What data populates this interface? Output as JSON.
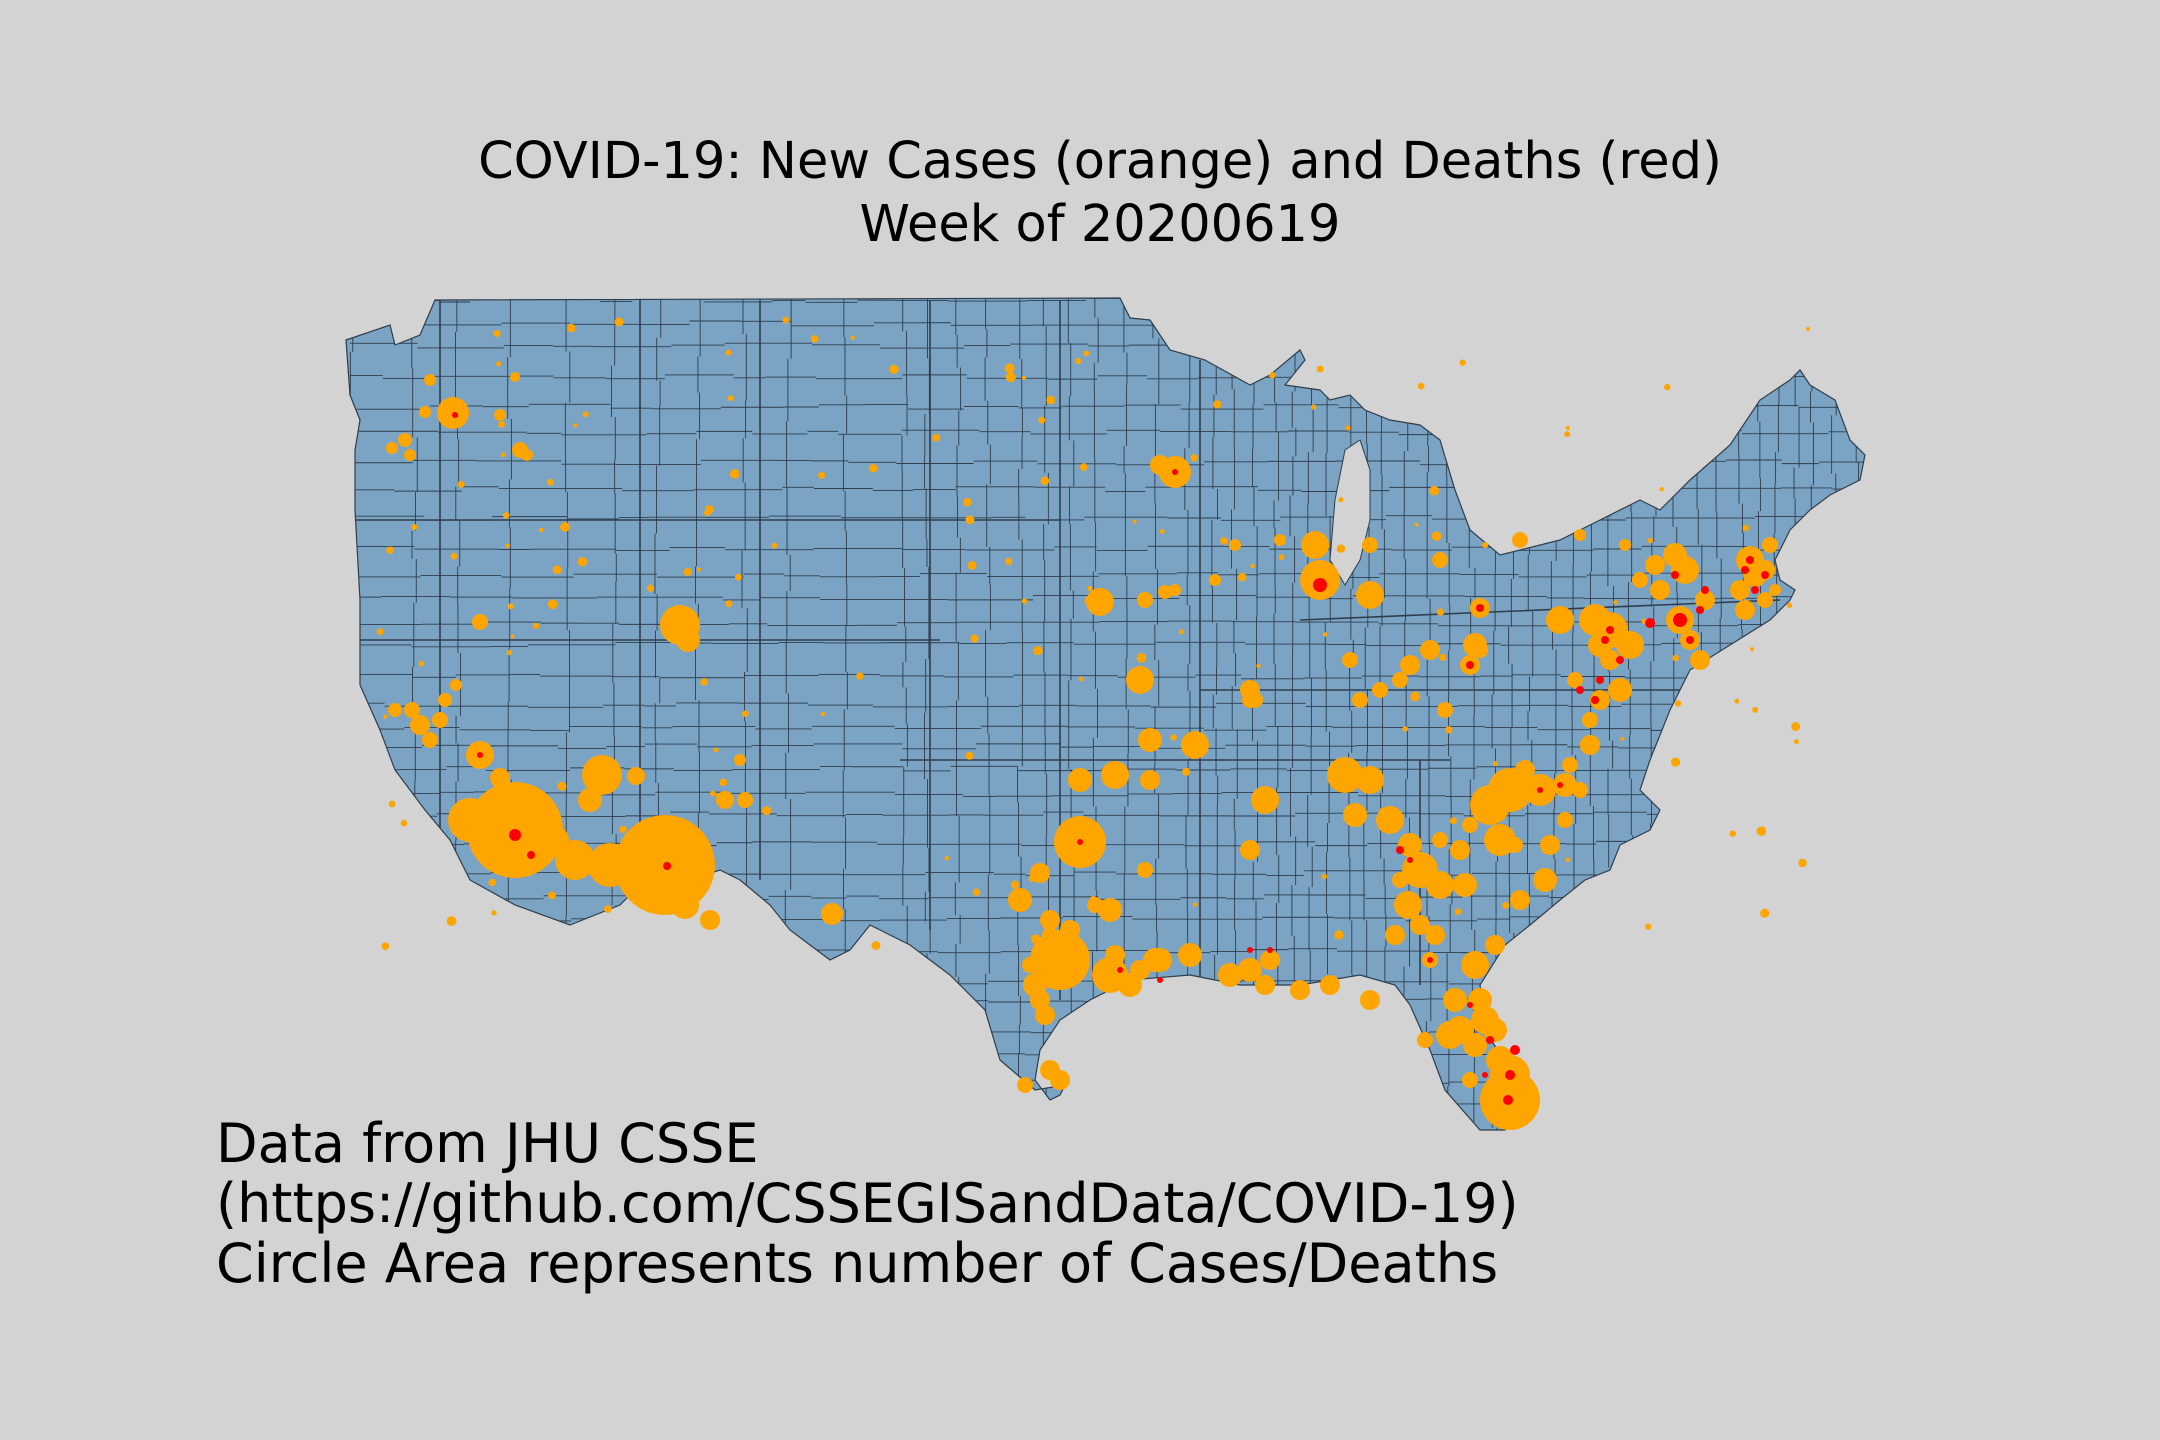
{
  "title": {
    "line1": "COVID-19: New Cases (orange) and Deaths (red)",
    "line2": "Week of 20200619"
  },
  "caption": {
    "line1": "Data from JHU CSSE",
    "line2": "(https://github.com/CSSEGISandData/COVID-19)",
    "line3": "Circle Area represents number of Cases/Deaths"
  },
  "colors": {
    "background": "#d3d3d3",
    "land": "#7aa3c4",
    "border": "#2f3e4c",
    "cases": "#ffa500",
    "deaths": "#ff0000"
  }
}
